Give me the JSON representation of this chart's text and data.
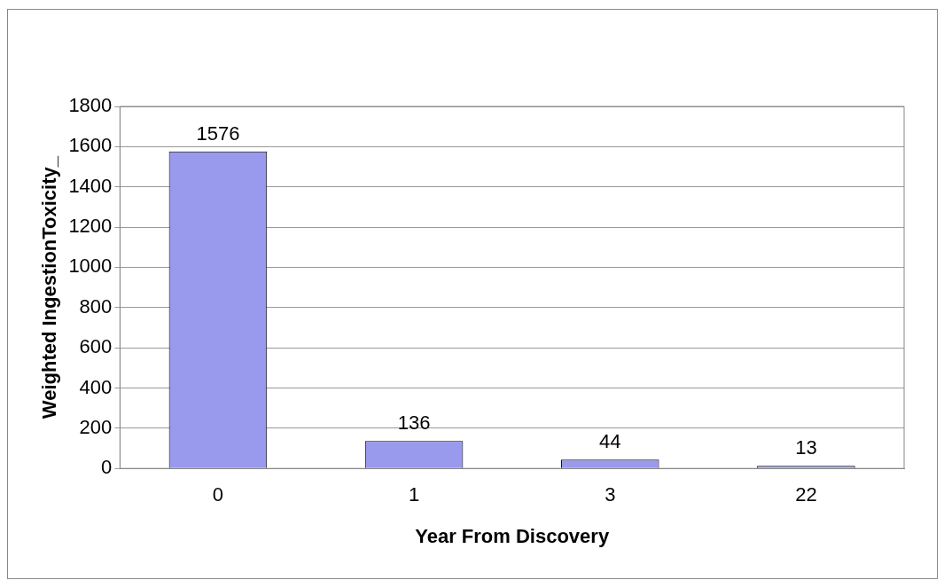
{
  "chart_data": {
    "type": "bar",
    "xlabel": "Year From Discovery",
    "ylabel": "Weighted IngestionToxicity_",
    "categories": [
      "0",
      "1",
      "3",
      "22"
    ],
    "values": [
      1576,
      136,
      44,
      13
    ],
    "color": "#9999ee",
    "ylim": [
      0,
      1800
    ],
    "yticks": [
      0,
      200,
      400,
      600,
      800,
      1000,
      1200,
      1400,
      1600,
      1800
    ],
    "grid": "y",
    "data_labels": true,
    "legend": false
  }
}
